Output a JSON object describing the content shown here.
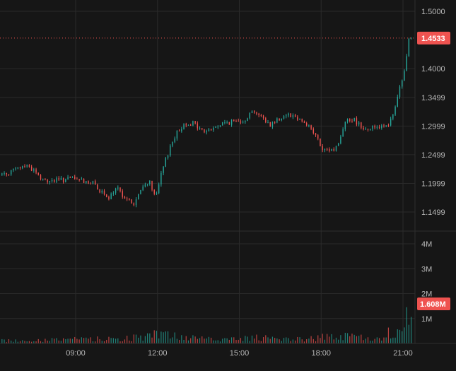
{
  "colors": {
    "background": "#161616",
    "up": "#26a69a",
    "down": "#ef5350",
    "grid": "#2a2a2a",
    "axis_text": "#b8b8b8",
    "price_line": "#ef5350"
  },
  "chart_data": {
    "type": "candlestick",
    "price_panel": {
      "y_ticks": [
        "1.5000",
        "1.4000",
        "1.3499",
        "1.2999",
        "1.2499",
        "1.1999",
        "1.1499"
      ],
      "ylim": [
        1.12,
        1.51
      ],
      "last_price_label": "1.4533",
      "last_price": 1.4533
    },
    "volume_panel": {
      "y_ticks": [
        "4M",
        "3M",
        "2M",
        "1M"
      ],
      "ylim": [
        0,
        4.3
      ],
      "last_volume_label": "1.608M",
      "last_volume": 1.608
    },
    "x_ticks": [
      "09:00",
      "12:00",
      "15:00",
      "18:00",
      "21:00"
    ],
    "x_tick_hours": [
      9,
      12,
      15,
      18,
      21
    ],
    "time_range": [
      6.3,
      21.35
    ],
    "price_path": [
      [
        6.3,
        1.215
      ],
      [
        6.8,
        1.222
      ],
      [
        7.25,
        1.232
      ],
      [
        7.6,
        1.222
      ],
      [
        7.85,
        1.204
      ],
      [
        8.4,
        1.205
      ],
      [
        9.0,
        1.208
      ],
      [
        9.5,
        1.203
      ],
      [
        9.8,
        1.198
      ],
      [
        10.0,
        1.185
      ],
      [
        10.25,
        1.172
      ],
      [
        10.6,
        1.19
      ],
      [
        10.9,
        1.176
      ],
      [
        11.2,
        1.162
      ],
      [
        11.5,
        1.19
      ],
      [
        11.8,
        1.205
      ],
      [
        12.0,
        1.172
      ],
      [
        12.25,
        1.22
      ],
      [
        12.55,
        1.265
      ],
      [
        12.75,
        1.285
      ],
      [
        13.1,
        1.305
      ],
      [
        13.4,
        1.305
      ],
      [
        13.75,
        1.29
      ],
      [
        14.1,
        1.295
      ],
      [
        14.5,
        1.305
      ],
      [
        14.85,
        1.307
      ],
      [
        15.3,
        1.312
      ],
      [
        15.6,
        1.328
      ],
      [
        15.9,
        1.315
      ],
      [
        16.2,
        1.302
      ],
      [
        16.5,
        1.312
      ],
      [
        16.85,
        1.322
      ],
      [
        17.3,
        1.312
      ],
      [
        17.6,
        1.302
      ],
      [
        17.9,
        1.282
      ],
      [
        18.15,
        1.255
      ],
      [
        18.6,
        1.26
      ],
      [
        18.8,
        1.28
      ],
      [
        19.0,
        1.315
      ],
      [
        19.3,
        1.31
      ],
      [
        19.7,
        1.295
      ],
      [
        20.2,
        1.3
      ],
      [
        20.6,
        1.305
      ],
      [
        20.8,
        1.33
      ],
      [
        21.0,
        1.375
      ],
      [
        21.15,
        1.395
      ],
      [
        21.3,
        1.453
      ]
    ],
    "volume_profile": [
      [
        6.3,
        0.12
      ],
      [
        8.0,
        0.15
      ],
      [
        9.0,
        0.18
      ],
      [
        10.0,
        0.2
      ],
      [
        10.8,
        0.22
      ],
      [
        11.7,
        0.3
      ],
      [
        12.1,
        0.45
      ],
      [
        12.6,
        0.35
      ],
      [
        13.5,
        0.2
      ],
      [
        15.0,
        0.18
      ],
      [
        15.5,
        0.28
      ],
      [
        16.5,
        0.2
      ],
      [
        17.8,
        0.22
      ],
      [
        18.3,
        0.35
      ],
      [
        19.2,
        0.3
      ],
      [
        20.0,
        0.18
      ],
      [
        20.7,
        0.25
      ],
      [
        21.0,
        0.9
      ],
      [
        21.3,
        1.2
      ]
    ],
    "bar_minutes": 5
  }
}
